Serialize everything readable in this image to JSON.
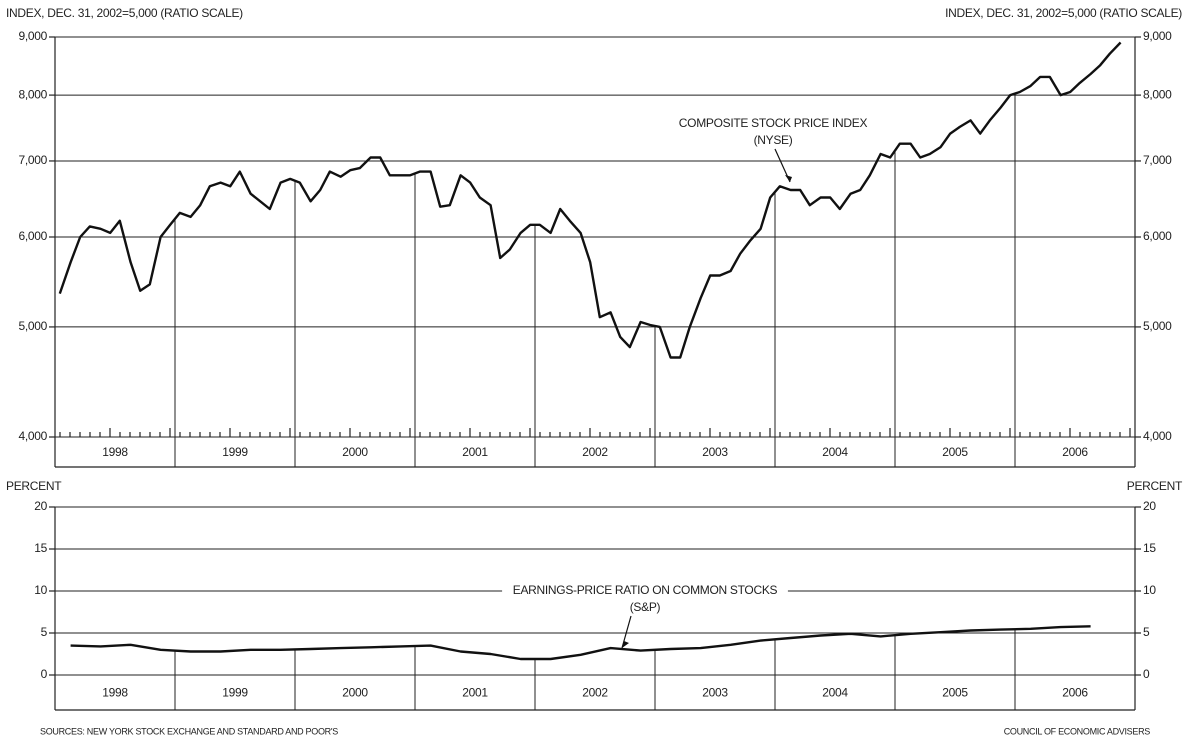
{
  "chart_data": [
    {
      "type": "line",
      "ylabel": "INDEX, DEC. 31, 2002=5,000 (RATIO SCALE)",
      "log": true,
      "ylim": [
        4000,
        9000
      ],
      "yticks": [
        {
          "value": 4000,
          "label": "4,000"
        },
        {
          "value": 5000,
          "label": "5,000"
        },
        {
          "value": 6000,
          "label": "6,000"
        },
        {
          "value": 7000,
          "label": "7,000"
        },
        {
          "value": 8000,
          "label": "8,000"
        },
        {
          "value": 9000,
          "label": "9,000"
        }
      ],
      "grid": true,
      "xlim": [
        1998,
        2007
      ],
      "xticks": [
        1999,
        2000,
        2001,
        2002,
        2003,
        2004,
        2005,
        2006
      ],
      "xlabels": [
        "1998",
        "1999",
        "2000",
        "2001",
        "2002",
        "2003",
        "2004",
        "2005",
        "2006"
      ],
      "annotation": [
        "COMPOSITE STOCK PRICE INDEX",
        "(NYSE)"
      ],
      "x": [
        1998.04,
        1998.13,
        1998.21,
        1998.29,
        1998.38,
        1998.46,
        1998.54,
        1998.63,
        1998.71,
        1998.79,
        1998.88,
        1998.96,
        1999.04,
        1999.13,
        1999.21,
        1999.29,
        1999.38,
        1999.46,
        1999.54,
        1999.63,
        1999.71,
        1999.79,
        1999.88,
        1999.96,
        2000.04,
        2000.13,
        2000.21,
        2000.29,
        2000.38,
        2000.46,
        2000.54,
        2000.63,
        2000.71,
        2000.79,
        2000.88,
        2000.96,
        2001.04,
        2001.13,
        2001.21,
        2001.29,
        2001.38,
        2001.46,
        2001.54,
        2001.63,
        2001.71,
        2001.79,
        2001.88,
        2001.96,
        2002.04,
        2002.13,
        2002.21,
        2002.29,
        2002.38,
        2002.46,
        2002.54,
        2002.63,
        2002.71,
        2002.79,
        2002.88,
        2002.96,
        2003.04,
        2003.13,
        2003.21,
        2003.29,
        2003.38,
        2003.46,
        2003.54,
        2003.63,
        2003.71,
        2003.79,
        2003.88,
        2003.96,
        2004.04,
        2004.13,
        2004.21,
        2004.29,
        2004.38,
        2004.46,
        2004.54,
        2004.63,
        2004.71,
        2004.79,
        2004.88,
        2004.96,
        2005.04,
        2005.13,
        2005.21,
        2005.29,
        2005.38,
        2005.46,
        2005.54,
        2005.63,
        2005.71,
        2005.79,
        2005.88,
        2005.96,
        2006.04,
        2006.13,
        2006.21,
        2006.29,
        2006.38,
        2006.46,
        2006.54,
        2006.63,
        2006.71,
        2006.79,
        2006.88
      ],
      "series": [
        {
          "color": "#111111",
          "values": [
            5350,
            5700,
            6000,
            6130,
            6100,
            6050,
            6200,
            5700,
            5380,
            5450,
            6000,
            6150,
            6300,
            6250,
            6400,
            6650,
            6700,
            6650,
            6850,
            6550,
            6450,
            6350,
            6700,
            6750,
            6700,
            6450,
            6600,
            6850,
            6780,
            6870,
            6900,
            7050,
            7050,
            6800,
            6800,
            6800,
            6850,
            6850,
            6380,
            6400,
            6800,
            6700,
            6500,
            6400,
            5750,
            5850,
            6050,
            6150,
            6150,
            6050,
            6350,
            6200,
            6050,
            5700,
            5100,
            5150,
            4900,
            4800,
            5050,
            5020,
            5000,
            4700,
            4700,
            5000,
            5300,
            5550,
            5550,
            5600,
            5800,
            5950,
            6100,
            6500,
            6650,
            6600,
            6600,
            6400,
            6500,
            6500,
            6350,
            6550,
            6600,
            6800,
            7100,
            7050,
            7250,
            7250,
            7050,
            7100,
            7200,
            7400,
            7500,
            7600,
            7400,
            7600,
            7800,
            8000,
            8050,
            8150,
            8300,
            8300,
            8000,
            8050,
            8200,
            8350,
            8500,
            8700,
            8900
          ]
        }
      ]
    },
    {
      "type": "line",
      "ylabel": "PERCENT",
      "ylim": [
        0,
        20
      ],
      "yticks": [
        0,
        5,
        10,
        15,
        20
      ],
      "grid": true,
      "xlim": [
        1998,
        2007
      ],
      "xticks": [
        1999,
        2000,
        2001,
        2002,
        2003,
        2004,
        2005,
        2006
      ],
      "xlabels": [
        "1998",
        "1999",
        "2000",
        "2001",
        "2002",
        "2003",
        "2004",
        "2005",
        "2006"
      ],
      "annotation": [
        "EARNINGS-PRICE RATIO ON COMMON STOCKS",
        "(S&P)"
      ],
      "x": [
        1998.13,
        1998.38,
        1998.63,
        1998.88,
        1999.13,
        1999.38,
        1999.63,
        1999.88,
        2000.13,
        2000.38,
        2000.63,
        2000.88,
        2001.13,
        2001.38,
        2001.63,
        2001.88,
        2002.13,
        2002.38,
        2002.63,
        2002.88,
        2003.13,
        2003.38,
        2003.63,
        2003.88,
        2004.13,
        2004.38,
        2004.63,
        2004.88,
        2005.13,
        2005.38,
        2005.63,
        2005.88,
        2006.13,
        2006.38,
        2006.63
      ],
      "series": [
        {
          "color": "#111111",
          "values": [
            3.5,
            3.4,
            3.6,
            3.0,
            2.8,
            2.8,
            3.0,
            3.0,
            3.1,
            3.2,
            3.3,
            3.4,
            3.5,
            2.8,
            2.5,
            1.9,
            1.9,
            2.4,
            3.2,
            2.9,
            3.1,
            3.2,
            3.6,
            4.1,
            4.4,
            4.7,
            4.9,
            4.6,
            4.9,
            5.1,
            5.3,
            5.4,
            5.5,
            5.7,
            5.8
          ]
        }
      ]
    }
  ],
  "source": "SOURCES: NEW YORK STOCK EXCHANGE AND STANDARD AND POOR'S",
  "credit": "COUNCIL OF ECONOMIC ADVISERS"
}
